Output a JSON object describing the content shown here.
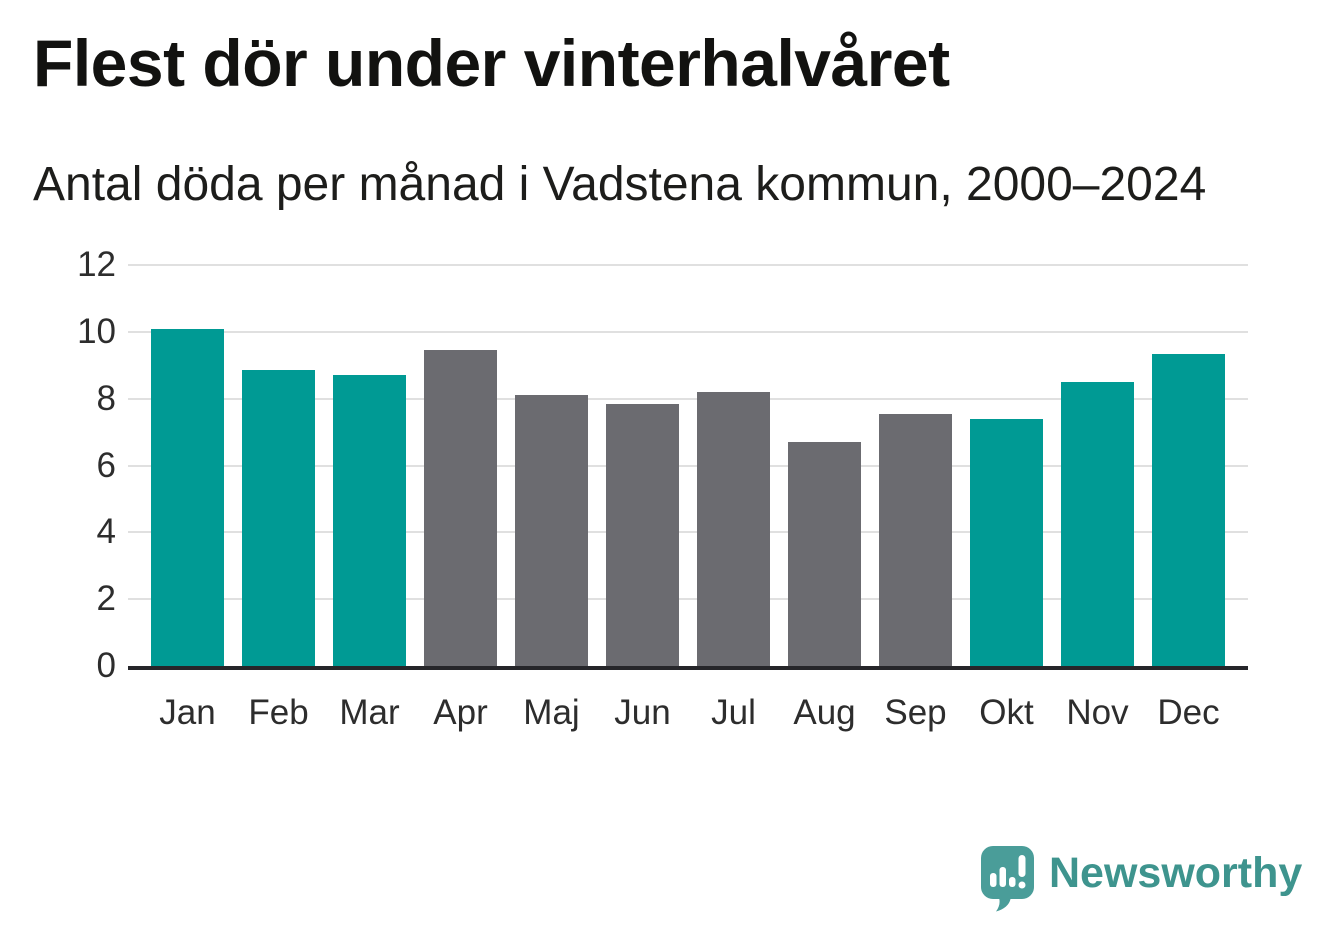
{
  "chart_data": {
    "type": "bar",
    "title": "Flest dör under vinterhalvåret",
    "subtitle": "Antal döda per månad i Vadstena kommun, 2000–2024",
    "categories": [
      "Jan",
      "Feb",
      "Mar",
      "Apr",
      "Maj",
      "Jun",
      "Jul",
      "Aug",
      "Sep",
      "Okt",
      "Nov",
      "Dec"
    ],
    "values": [
      10.1,
      8.85,
      8.7,
      9.45,
      8.1,
      7.85,
      8.2,
      6.7,
      7.55,
      7.4,
      8.5,
      9.35
    ],
    "bar_groups": [
      "winter",
      "winter",
      "winter",
      "summer",
      "summer",
      "summer",
      "summer",
      "summer",
      "summer",
      "winter",
      "winter",
      "winter"
    ],
    "palette": {
      "winter": "#009a94",
      "summer": "#6b6b70"
    },
    "xlabel": "",
    "ylabel": "",
    "ylim": [
      0,
      12
    ],
    "yticks": [
      0,
      2,
      4,
      6,
      8,
      10,
      12
    ],
    "grid": true,
    "legend_position": "none",
    "gridline_color": "#e0e0e0",
    "axis_color": "#26262a",
    "tick_label_color": "#2d2d2d"
  },
  "footer": {
    "brand": "Newsworthy",
    "brand_color": "#3e948e",
    "logo_color": "#4a9d99",
    "logo_icon": "speech-bubble-with-bar-chart-and-exclamation"
  }
}
